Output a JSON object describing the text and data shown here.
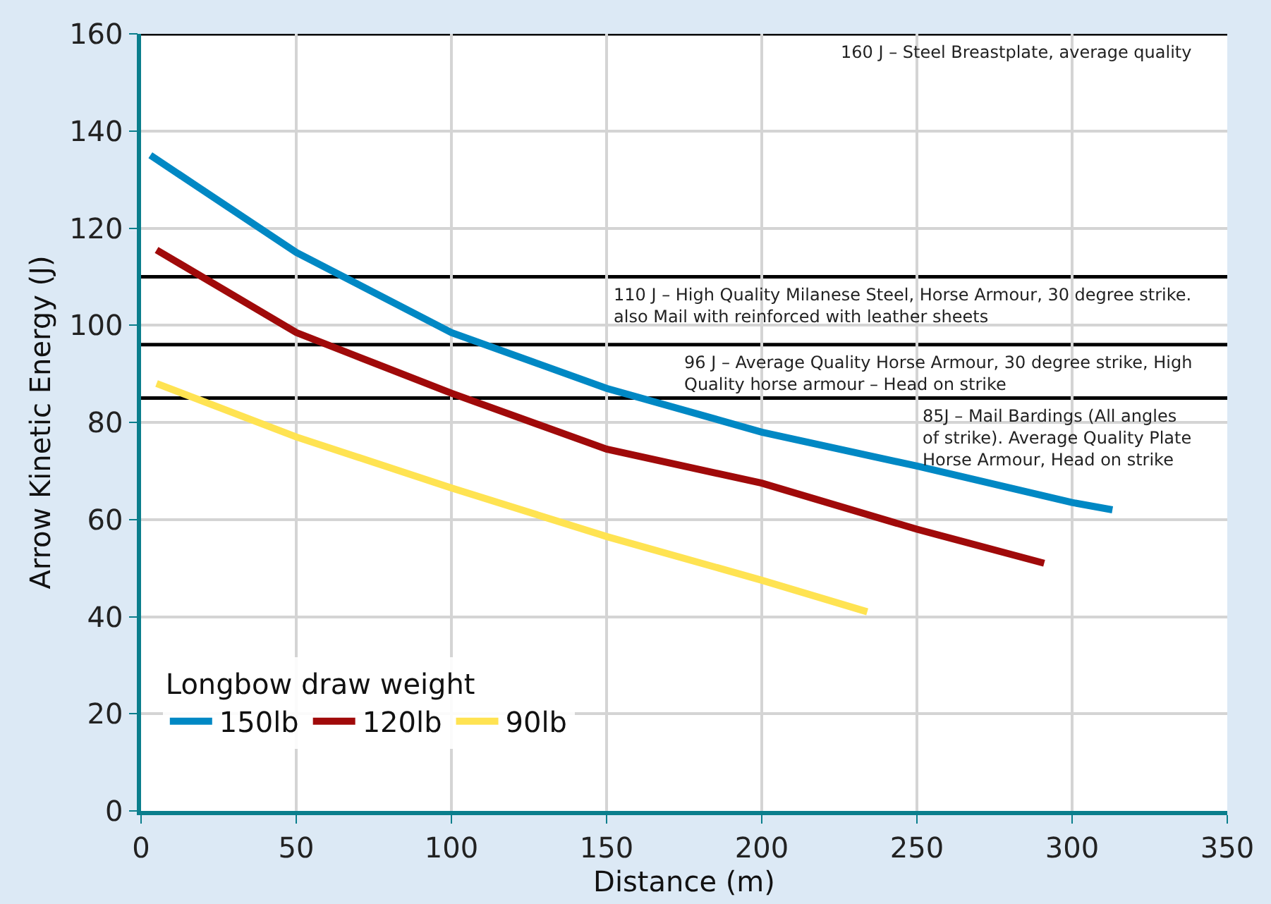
{
  "chart_data": {
    "type": "line",
    "xlabel": "Distance (m)",
    "ylabel": "Arrow Kinetic Energy (J)",
    "legend_title": "Longbow draw weight",
    "series": [
      {
        "name": "150lb",
        "color": "#0088c4",
        "x": [
          3,
          50,
          100,
          150,
          200,
          250,
          300,
          313
        ],
        "values": [
          135,
          115,
          98.5,
          87,
          78,
          71,
          63.5,
          62
        ]
      },
      {
        "name": "120lb",
        "color": "#a00a0a",
        "x": [
          5,
          50,
          100,
          150,
          200,
          250,
          291
        ],
        "values": [
          115.5,
          98.5,
          86,
          74.5,
          67.5,
          58,
          51
        ]
      },
      {
        "name": "90lb",
        "color": "#ffe352",
        "x": [
          5,
          50,
          100,
          150,
          200,
          234
        ],
        "values": [
          88,
          77,
          66.5,
          56.5,
          47.5,
          41
        ]
      }
    ],
    "xlim": [
      0,
      350
    ],
    "xticks": [
      0,
      50,
      100,
      150,
      200,
      250,
      300,
      350
    ],
    "ylim": [
      0,
      160
    ],
    "yticks": [
      0,
      20,
      40,
      60,
      80,
      100,
      120,
      140,
      160
    ],
    "ref_lines": [
      {
        "axis": "y",
        "value": 160,
        "label": "160 J – Steel Breastplate, average quality",
        "color": "#000000"
      },
      {
        "axis": "y",
        "value": 110,
        "label": "110 J – High Quality Milanese Steel, Horse Armour, 30 degree strike.\nalso Mail with reinforced with leather sheets",
        "color": "#000000"
      },
      {
        "axis": "y",
        "value": 96,
        "label": "96 J – Average Quality Horse Armour, 30 degree strike, High\nQuality horse armour – Head on strike",
        "color": "#000000"
      },
      {
        "axis": "y",
        "value": 85,
        "label": "85J – Mail Bardings (All angles\nof strike). Average Quality Plate\nHorse Armour, Head on strike",
        "color": "#000000"
      }
    ],
    "grid": true,
    "legend": "bottom left",
    "marker": "none",
    "line_style": "solid"
  }
}
